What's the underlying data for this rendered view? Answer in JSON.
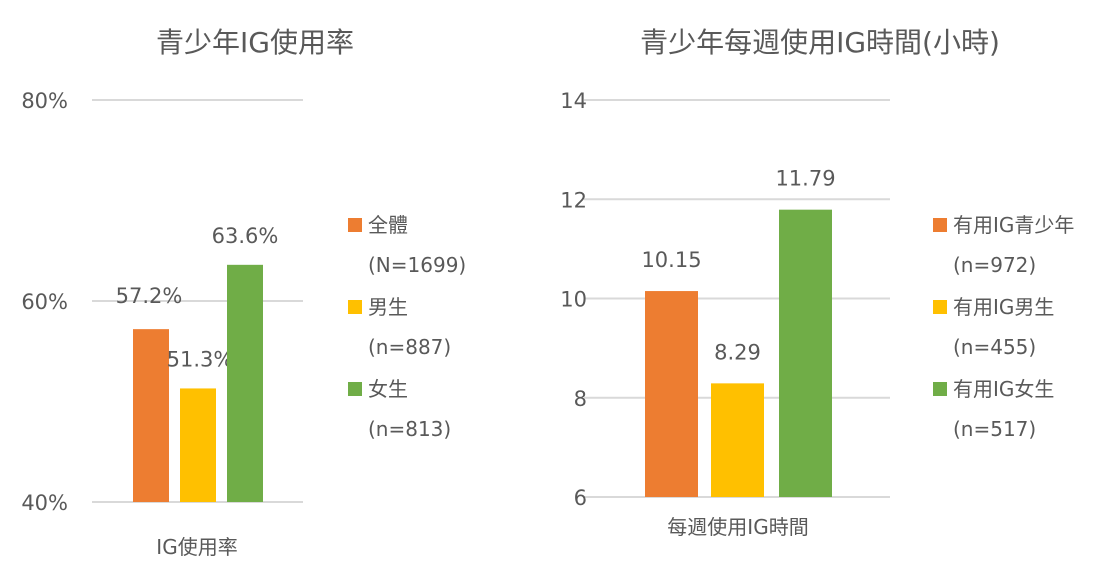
{
  "chart_data": [
    {
      "type": "bar",
      "title": "青少年IG使用率",
      "categories": [
        "IG使用率"
      ],
      "series": [
        {
          "name": "全體",
          "sub": "(N=1699)",
          "color": "#ED7D31",
          "values": [
            57.2
          ],
          "label": "57.2%"
        },
        {
          "name": "男生",
          "sub": "(n=887)",
          "color": "#FFC000",
          "values": [
            51.3
          ],
          "label": "51.3%"
        },
        {
          "name": "女生",
          "sub": "(n=813)",
          "color": "#70AD47",
          "values": [
            63.6
          ],
          "label": "63.6%"
        }
      ],
      "ylim": [
        40,
        80
      ],
      "yticks": [
        40,
        60,
        80
      ],
      "ytick_labels": [
        "40%",
        "60%",
        "80%"
      ],
      "xlabel": "",
      "ylabel": "",
      "grid": true,
      "legend": "right"
    },
    {
      "type": "bar",
      "title": "青少年每週使用IG時間(小時)",
      "categories": [
        "每週使用IG時間"
      ],
      "series": [
        {
          "name": "有用IG青少年",
          "sub": "(n=972)",
          "color": "#ED7D31",
          "values": [
            10.15
          ],
          "label": "10.15"
        },
        {
          "name": "有用IG男生",
          "sub": "(n=455)",
          "color": "#FFC000",
          "values": [
            8.29
          ],
          "label": "8.29"
        },
        {
          "name": "有用IG女生",
          "sub": "(n=517)",
          "color": "#70AD47",
          "values": [
            11.79
          ],
          "label": "11.79"
        }
      ],
      "ylim": [
        6,
        14
      ],
      "yticks": [
        6,
        8,
        10,
        12,
        14
      ],
      "ytick_labels": [
        "6",
        "8",
        "10",
        "12",
        "14"
      ],
      "xlabel": "",
      "ylabel": "",
      "grid": true,
      "legend": "right"
    }
  ]
}
